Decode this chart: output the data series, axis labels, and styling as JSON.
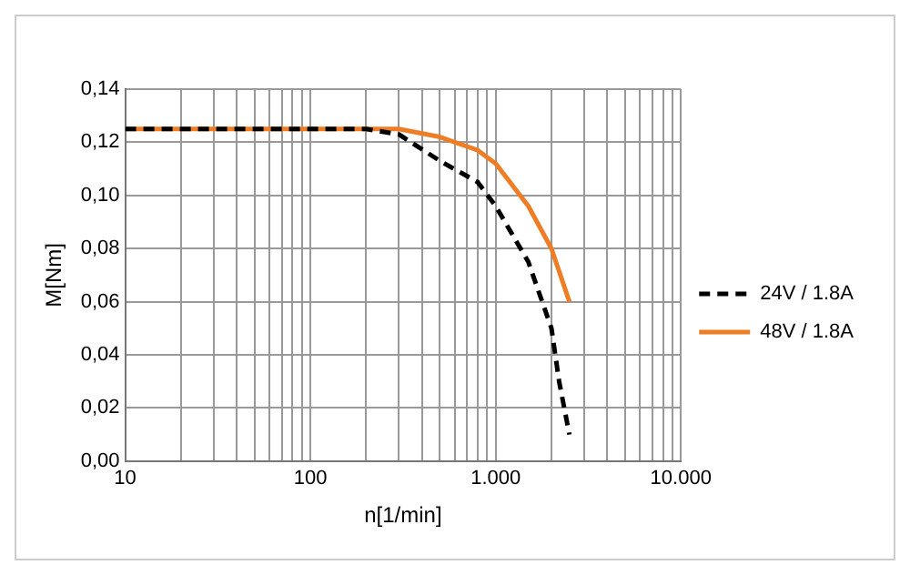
{
  "chart_data": {
    "type": "line",
    "xlabel": "n[1/min]",
    "ylabel": "M[Nm]",
    "log": "x",
    "series": [
      {
        "name": "24V / 1.8A",
        "color": "#000000",
        "line_style": "dashed",
        "x": [
          10,
          100,
          200,
          300,
          500,
          800,
          1000,
          1500,
          2000,
          2200,
          2500
        ],
        "values": [
          0.125,
          0.125,
          0.125,
          0.123,
          0.113,
          0.105,
          0.096,
          0.075,
          0.05,
          0.03,
          0.01
        ]
      },
      {
        "name": "48V / 1.8A",
        "color": "#ee7d26",
        "line_style": "solid",
        "x": [
          10,
          100,
          300,
          500,
          800,
          1000,
          1500,
          2000,
          2500
        ],
        "values": [
          0.125,
          0.125,
          0.125,
          0.122,
          0.117,
          0.112,
          0.096,
          0.08,
          0.06
        ]
      }
    ],
    "xlim": [
      10,
      10000
    ],
    "xticks": [
      {
        "value": 10,
        "label": "10"
      },
      {
        "value": 20,
        "label": null
      },
      {
        "value": 30,
        "label": null
      },
      {
        "value": 40,
        "label": null
      },
      {
        "value": 50,
        "label": null
      },
      {
        "value": 60,
        "label": null
      },
      {
        "value": 70,
        "label": null
      },
      {
        "value": 80,
        "label": null
      },
      {
        "value": 90,
        "label": null
      },
      {
        "value": 100,
        "label": "100"
      },
      {
        "value": 200,
        "label": null
      },
      {
        "value": 300,
        "label": null
      },
      {
        "value": 400,
        "label": null
      },
      {
        "value": 500,
        "label": null
      },
      {
        "value": 600,
        "label": null
      },
      {
        "value": 700,
        "label": null
      },
      {
        "value": 800,
        "label": null
      },
      {
        "value": 900,
        "label": null
      },
      {
        "value": 1000,
        "label": "1.000"
      },
      {
        "value": 2000,
        "label": null
      },
      {
        "value": 3000,
        "label": null
      },
      {
        "value": 4000,
        "label": null
      },
      {
        "value": 5000,
        "label": null
      },
      {
        "value": 6000,
        "label": null
      },
      {
        "value": 7000,
        "label": null
      },
      {
        "value": 8000,
        "label": null
      },
      {
        "value": 9000,
        "label": null
      },
      {
        "value": 10000,
        "label": "10.000"
      }
    ],
    "ylim": [
      0,
      0.14
    ],
    "yticks": [
      {
        "value": 0,
        "label": "0,00"
      },
      {
        "value": 0.02,
        "label": "0,02"
      },
      {
        "value": 0.04,
        "label": "0,04"
      },
      {
        "value": 0.06,
        "label": "0,06"
      },
      {
        "value": 0.08,
        "label": "0,08"
      },
      {
        "value": 0.1,
        "label": "0,10"
      },
      {
        "value": 0.12,
        "label": "0,12"
      },
      {
        "value": 0.14,
        "label": "0,14"
      }
    ],
    "grid": true,
    "legend": "right",
    "marker": "none"
  }
}
